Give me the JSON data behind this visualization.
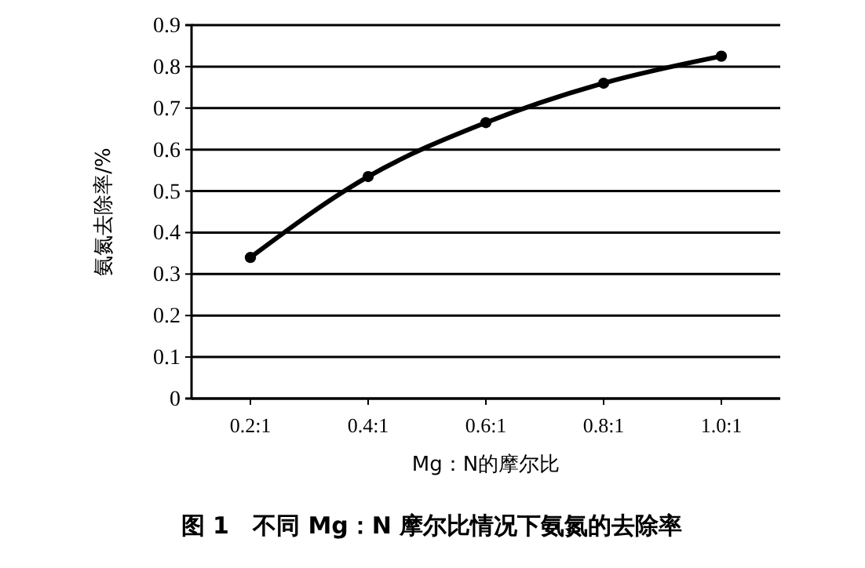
{
  "chart_data": {
    "type": "line",
    "title": "图 1　不同 Mg：N 摩尔比情况下氨氮的去除率",
    "xlabel": "Mg：N的摩尔比",
    "ylabel": "氨氮去除率/%",
    "categories": [
      "0.2:1",
      "0.4:1",
      "0.6:1",
      "0.8:1",
      "1.0:1"
    ],
    "series": [
      {
        "color": "#000000",
        "values": [
          0.34,
          0.535,
          0.665,
          0.76,
          0.825
        ]
      }
    ],
    "ylim": [
      0,
      0.9
    ],
    "yticks": [
      0,
      0.1,
      0.2,
      0.3,
      0.4,
      0.5,
      0.6,
      0.7,
      0.8,
      0.9
    ],
    "grid": "y",
    "marker": "circle",
    "line_style": "solid"
  }
}
